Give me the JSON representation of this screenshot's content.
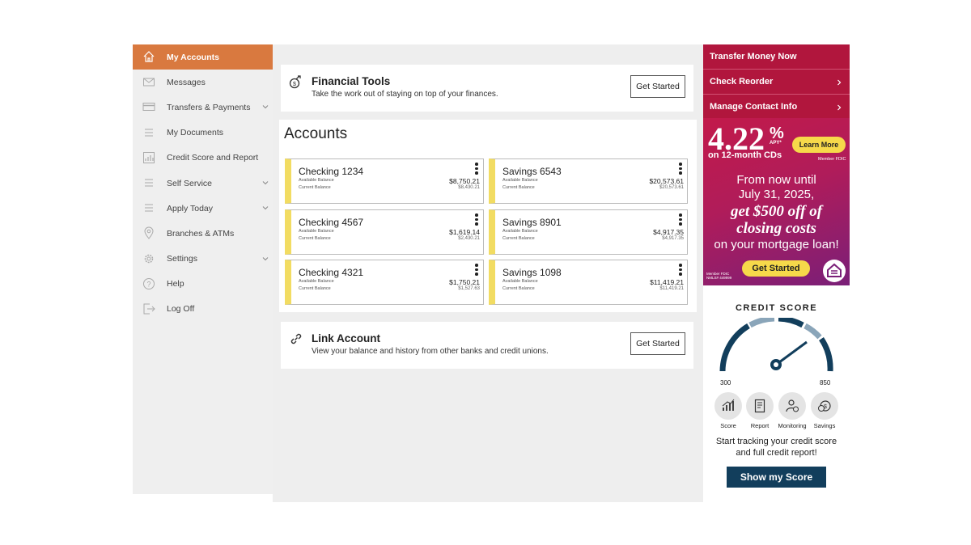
{
  "sidebar": {
    "items": [
      {
        "label": "My Accounts",
        "icon": "home-icon",
        "active": true,
        "has_chevron": false
      },
      {
        "label": "Messages",
        "icon": "envelope-icon",
        "active": false,
        "has_chevron": false
      },
      {
        "label": "Transfers & Payments",
        "icon": "card-icon",
        "active": false,
        "has_chevron": true
      },
      {
        "label": "My Documents",
        "icon": "list-icon",
        "active": false,
        "has_chevron": false
      },
      {
        "label": "Credit Score and Report",
        "icon": "chart-icon",
        "active": false,
        "has_chevron": false
      },
      {
        "label": "Self Service",
        "icon": "list-icon",
        "active": false,
        "has_chevron": true
      },
      {
        "label": "Apply Today",
        "icon": "list-icon",
        "active": false,
        "has_chevron": true
      },
      {
        "label": "Branches & ATMs",
        "icon": "map-pin-icon",
        "active": false,
        "has_chevron": false
      },
      {
        "label": "Settings",
        "icon": "gear-icon",
        "active": false,
        "has_chevron": true
      },
      {
        "label": "Help",
        "icon": "help-icon",
        "active": false,
        "has_chevron": false
      },
      {
        "label": "Log Off",
        "icon": "logout-icon",
        "active": false,
        "has_chevron": false
      }
    ]
  },
  "tools": {
    "title": "Financial Tools",
    "subtitle": "Take the work out of staying on top of your finances.",
    "button": "Get Started"
  },
  "accounts": {
    "title": "Accounts",
    "available_label": "Available Balance",
    "current_label": "Current Balance",
    "list": [
      {
        "name": "Checking 1234",
        "available": "$8,750.21",
        "current": "$8,430.21"
      },
      {
        "name": "Savings 6543",
        "available": "$20,573.61",
        "current": "$20,573.61"
      },
      {
        "name": "Checking 4567",
        "available": "$1,619.14",
        "current": "$2,430.21"
      },
      {
        "name": "Savings 8901",
        "available": "$4,917.35",
        "current": "$4,917.35"
      },
      {
        "name": "Checking 4321",
        "available": "$1,750.21",
        "current": "$1,527.63"
      },
      {
        "name": "Savings 1098",
        "available": "$11,419.21",
        "current": "$11,419.21"
      }
    ]
  },
  "link_account": {
    "title": "Link Account",
    "subtitle": "View your balance and history from other banks and credit unions.",
    "button": "Get Started"
  },
  "right_menu": {
    "items": [
      {
        "label": "Transfer Money Now"
      },
      {
        "label": "Check Reorder"
      },
      {
        "label": "Manage Contact Info"
      }
    ]
  },
  "ad": {
    "rate": "4.22",
    "percent": "%",
    "apy": "APY*",
    "term": "on 12-month CDs",
    "learn_more": "Learn More",
    "member_fdic": "Member FDIC",
    "line1": "From now until",
    "line2": "July 31, 2025,",
    "line3": "get $500 off of",
    "line4": "closing costs",
    "line5": "on your mortgage loan!",
    "button": "Get Started",
    "fine_print": "Member FDIC NMLS# 449999"
  },
  "credit": {
    "title": "CREDIT SCORE",
    "min": "300",
    "max": "850",
    "features": [
      "Score",
      "Report",
      "Monitoring",
      "Savings"
    ],
    "message_line1": "Start tracking your credit score",
    "message_line2": "and full credit report!",
    "button": "Show my Score"
  },
  "colors": {
    "accent_orange": "#d9793f",
    "brand_red": "#b1163d",
    "account_stripe": "#f2dc62",
    "navy_button": "#123e5c"
  }
}
